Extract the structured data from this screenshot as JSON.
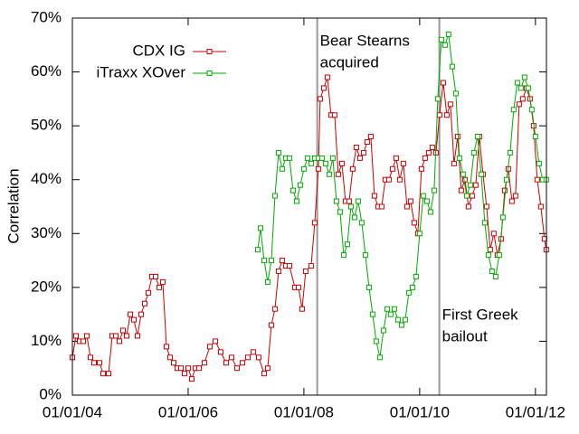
{
  "chart_data": {
    "type": "line",
    "ylabel": "Correlation",
    "xlim": [
      2004,
      2012.19
    ],
    "xticks": [
      {
        "value": 2004,
        "label": "01/01/04"
      },
      {
        "value": 2006,
        "label": "01/01/06"
      },
      {
        "value": 2008,
        "label": "01/01/08"
      },
      {
        "value": 2010,
        "label": "01/01/10"
      },
      {
        "value": 2012,
        "label": "01/01/12"
      }
    ],
    "ylim": [
      0,
      70
    ],
    "yticks": [
      {
        "value": 0,
        "label": "0%"
      },
      {
        "value": 10,
        "label": "10%"
      },
      {
        "value": 20,
        "label": "20%"
      },
      {
        "value": 30,
        "label": "30%"
      },
      {
        "value": 40,
        "label": "40%"
      },
      {
        "value": 50,
        "label": "50%"
      },
      {
        "value": 60,
        "label": "60%"
      },
      {
        "value": 70,
        "label": "70%"
      }
    ],
    "grid": false,
    "legend": "upper left",
    "annotations": [
      {
        "x": 2008.23,
        "text": [
          "Bear Stearns",
          "acquired"
        ],
        "color": "#999999"
      },
      {
        "x": 2010.34,
        "text": [
          "First Greek",
          "bailout"
        ],
        "color": "#999999"
      }
    ],
    "series": [
      {
        "name": "CDX IG",
        "color": "#cc0000",
        "x": [
          2004,
          2004.0625,
          2004.125,
          2004.1875,
          2004.25,
          2004.3125,
          2004.375,
          2004.4688,
          2004.5313,
          2004.625,
          2004.6875,
          2004.75,
          2004.8125,
          2004.875,
          2004.9375,
          2005,
          2005.0625,
          2005.125,
          2005.1875,
          2005.25,
          2005.3125,
          2005.375,
          2005.4375,
          2005.5,
          2005.5625,
          2005.625,
          2005.6875,
          2005.75,
          2005.8125,
          2005.875,
          2005.9375,
          2006,
          2006.0625,
          2006.125,
          2006.1875,
          2006.2813,
          2006.375,
          2006.4688,
          2006.5625,
          2006.6563,
          2006.75,
          2006.8438,
          2006.9375,
          2007.0313,
          2007.125,
          2007.2188,
          2007.3125,
          2007.375,
          2007.4375,
          2007.5,
          2007.5625,
          2007.625,
          2007.6875,
          2007.75,
          2007.8438,
          2007.9063,
          2007.9688,
          2008.0313,
          2008.125,
          2008.1875,
          2008.25,
          2008.2813,
          2008.3438,
          2008.4063,
          2008.4688,
          2008.5313,
          2008.5938,
          2008.6563,
          2008.7188,
          2008.7813,
          2008.8438,
          2008.9063,
          2008.9688,
          2009.0313,
          2009.0938,
          2009.1563,
          2009.2188,
          2009.2813,
          2009.3438,
          2009.4063,
          2009.4688,
          2009.5313,
          2009.5938,
          2009.6563,
          2009.7188,
          2009.7813,
          2009.8438,
          2009.9063,
          2009.9688,
          2010.0313,
          2010.0938,
          2010.1563,
          2010.2188,
          2010.2813,
          2010.3438,
          2010.4063,
          2010.4688,
          2010.5313,
          2010.5938,
          2010.6563,
          2010.7188,
          2010.7813,
          2010.8438,
          2010.9063,
          2010.9688,
          2011.0313,
          2011.0938,
          2011.1563,
          2011.2188,
          2011.2813,
          2011.3438,
          2011.4063,
          2011.4688,
          2011.5313,
          2011.5938,
          2011.6563,
          2011.7188,
          2011.7813,
          2011.8438,
          2011.9063,
          2011.9688,
          2012.0313,
          2012.0938,
          2012.1563,
          2012.1875
        ],
        "values": [
          7,
          11,
          10,
          10,
          11,
          7,
          6,
          6,
          4,
          4,
          11,
          11,
          10,
          12,
          11,
          15,
          14,
          11,
          15,
          17,
          19,
          22,
          22,
          20,
          21,
          9,
          7,
          6,
          5,
          5,
          4,
          5,
          3,
          5,
          5,
          6,
          9,
          10,
          8,
          6,
          7,
          5,
          6,
          7,
          8,
          7,
          4,
          5,
          13,
          16,
          23,
          25,
          24,
          24,
          20,
          20,
          16,
          23,
          24,
          32,
          42,
          55,
          57,
          59,
          52,
          52,
          41,
          43,
          36,
          36,
          42,
          46,
          44,
          45,
          47,
          48,
          37,
          35,
          35,
          40,
          40,
          42,
          44,
          40,
          43,
          35,
          36,
          32,
          30,
          42,
          44,
          45,
          46,
          45,
          52,
          58,
          52,
          54,
          43,
          48,
          38,
          40,
          35,
          37,
          39,
          48,
          41,
          35,
          27,
          30,
          26,
          29,
          38,
          42,
          36,
          37,
          54,
          55,
          57,
          55,
          50,
          40,
          35,
          29,
          27
        ]
      },
      {
        "name": "iTraxx XOver",
        "color": "#00aa00",
        "x": [
          2007.2031,
          2007.25,
          2007.3125,
          2007.375,
          2007.4375,
          2007.5,
          2007.5625,
          2007.625,
          2007.6875,
          2007.75,
          2007.8125,
          2007.875,
          2007.9375,
          2008,
          2008.0625,
          2008.125,
          2008.1875,
          2008.25,
          2008.3125,
          2008.375,
          2008.4375,
          2008.5,
          2008.5625,
          2008.625,
          2008.6875,
          2008.75,
          2008.8125,
          2008.875,
          2008.9375,
          2009,
          2009.0625,
          2009.125,
          2009.1875,
          2009.25,
          2009.3125,
          2009.375,
          2009.4375,
          2009.5,
          2009.5625,
          2009.625,
          2009.6875,
          2009.75,
          2009.8125,
          2009.875,
          2009.9375,
          2010,
          2010.0625,
          2010.125,
          2010.1875,
          2010.25,
          2010.3125,
          2010.375,
          2010.4375,
          2010.5,
          2010.5625,
          2010.625,
          2010.6875,
          2010.75,
          2010.8125,
          2010.875,
          2010.9375,
          2011,
          2011.0625,
          2011.125,
          2011.1875,
          2011.25,
          2011.3125,
          2011.375,
          2011.4375,
          2011.5,
          2011.5625,
          2011.625,
          2011.6875,
          2011.75,
          2011.8125,
          2011.875,
          2011.9375,
          2012,
          2012.0625,
          2012.125,
          2012.1875
        ],
        "values": [
          27,
          31,
          25,
          21,
          25,
          37,
          45,
          42,
          44,
          44,
          38,
          36,
          39,
          42,
          44,
          43,
          44,
          44,
          44,
          43,
          41,
          44,
          36,
          34,
          26,
          28,
          35,
          33,
          36,
          32,
          26,
          20,
          15,
          10,
          7,
          12,
          16,
          15,
          16,
          14,
          13,
          14,
          19,
          20,
          22,
          30,
          37,
          36,
          34,
          38,
          55,
          66,
          65,
          67,
          61,
          56,
          44,
          41,
          37,
          39,
          45,
          48,
          41,
          32,
          26,
          23,
          22,
          26,
          33,
          40,
          45,
          53,
          58,
          57,
          59,
          57,
          53,
          48,
          43,
          40,
          40
        ]
      }
    ]
  }
}
